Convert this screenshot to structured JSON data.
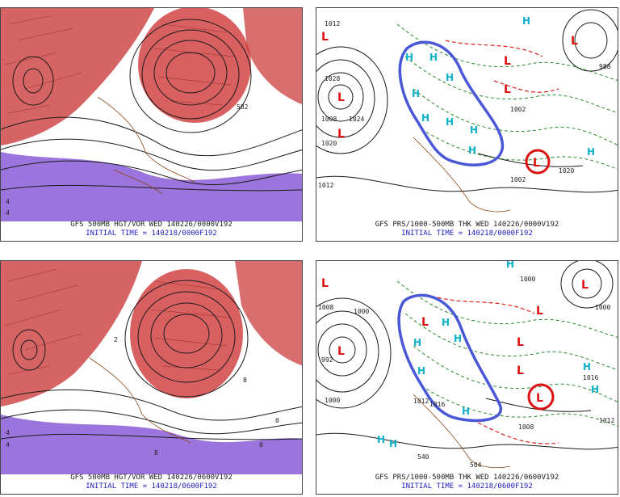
{
  "panels": [
    {
      "id": "p1",
      "line1": "GFS 500MB HGT/VOR WED 140226/0000V192",
      "line2": "INITIAL TIME = 140218/0000F192",
      "labels": [
        "4",
        "4",
        "582"
      ]
    },
    {
      "id": "p2",
      "line1": "GFS PRS/1000-500MB THK WED 140226/0000V192",
      "line2": "INITIAL TIME = 140218/0000F192",
      "labels": [
        "1012",
        "1020",
        "988",
        "1028",
        "1002",
        "1008",
        "1024",
        "1002",
        "1020",
        "1012"
      ]
    },
    {
      "id": "p3",
      "line1": "GFS 500MB HGT/VOR WED 140226/0600V192",
      "line2": "INITIAL TIME = 140218/0600F192",
      "labels": [
        "4",
        "4",
        "2",
        "8",
        "0",
        "0",
        "8"
      ]
    },
    {
      "id": "p4",
      "line1": "GFS PRS/1000-500MB THK WED 140226/0600V192",
      "line2": "INITIAL TIME = 140218/0600F192",
      "labels": [
        "1008",
        "1000",
        "1012",
        "1000",
        "992",
        "1000",
        "1016",
        "1008",
        "1016",
        "1012",
        "504",
        "540",
        "1000"
      ]
    }
  ],
  "symbols": {
    "p2": [
      "L",
      "L",
      "L",
      "L",
      "L",
      "L",
      "L",
      "H",
      "H",
      "H",
      "H",
      "H",
      "H",
      "H",
      "H",
      "H",
      "H"
    ],
    "p4": [
      "L",
      "L",
      "L",
      "L",
      "L",
      "L",
      "L",
      "L",
      "H",
      "H",
      "H",
      "H",
      "H",
      "H",
      "H",
      "H",
      "H",
      "H"
    ]
  },
  "colors": {
    "vorticity_red": "#c83030",
    "vorticity_purple": "#8a5cd8",
    "height_contour": "#1a1a1a",
    "thickness_dashed": "#2a8a2a",
    "thickness_warm": "#dd2222",
    "pressure_contour": "#1a1a1a",
    "low_symbol": "#dd1111",
    "high_symbol": "#10b0c8",
    "outline_blue": "#4a58d8",
    "caption_blue": "#2020c0"
  }
}
